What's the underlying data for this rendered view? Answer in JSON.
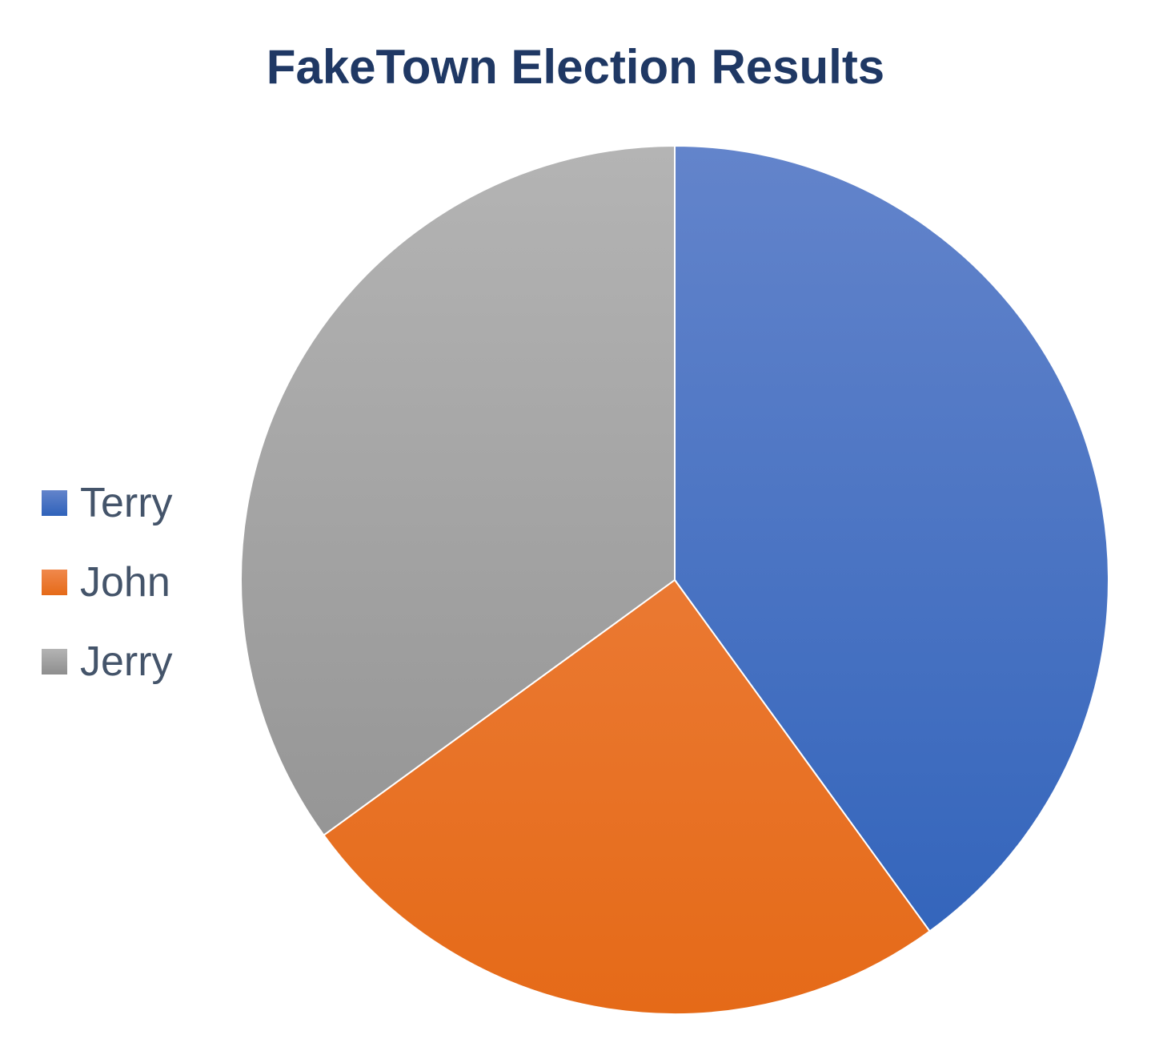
{
  "chart_data": {
    "type": "pie",
    "title": "FakeTown Election Results",
    "categories": [
      "Terry",
      "John",
      "Jerry"
    ],
    "values": [
      40,
      25,
      35
    ],
    "colors": {
      "Terry": [
        "#6384cb",
        "#2f62ba"
      ],
      "John": [
        "#f0884c",
        "#e56a18"
      ],
      "Jerry": [
        "#b4b4b4",
        "#8e8e8e"
      ]
    },
    "legend_position": "left",
    "start_angle": "12 o'clock",
    "direction": "clockwise"
  }
}
